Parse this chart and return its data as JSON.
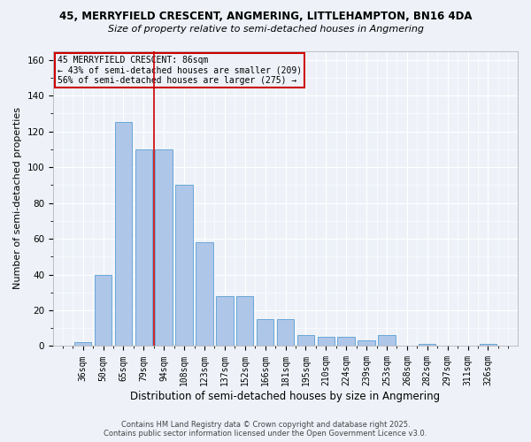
{
  "title1": "45, MERRYFIELD CRESCENT, ANGMERING, LITTLEHAMPTON, BN16 4DA",
  "title2": "Size of property relative to semi-detached houses in Angmering",
  "xlabel": "Distribution of semi-detached houses by size in Angmering",
  "ylabel": "Number of semi-detached properties",
  "categories": [
    "36sqm",
    "50sqm",
    "65sqm",
    "79sqm",
    "94sqm",
    "108sqm",
    "123sqm",
    "137sqm",
    "152sqm",
    "166sqm",
    "181sqm",
    "195sqm",
    "210sqm",
    "224sqm",
    "239sqm",
    "253sqm",
    "268sqm",
    "282sqm",
    "297sqm",
    "311sqm",
    "326sqm"
  ],
  "values": [
    2,
    40,
    125,
    110,
    110,
    90,
    58,
    28,
    28,
    15,
    15,
    6,
    5,
    5,
    3,
    6,
    0,
    1,
    0,
    0,
    1
  ],
  "bar_color": "#aec6e8",
  "bar_edge_color": "#5a9fd4",
  "vline_index": 3.5,
  "vline_color": "#cc0000",
  "annotation_title": "45 MERRYFIELD CRESCENT: 86sqm",
  "annotation_line1": "← 43% of semi-detached houses are smaller (209)",
  "annotation_line2": "56% of semi-detached houses are larger (275) →",
  "annotation_box_color": "#cc0000",
  "ylim": [
    0,
    165
  ],
  "yticks": [
    0,
    20,
    40,
    60,
    80,
    100,
    120,
    140,
    160
  ],
  "footer1": "Contains HM Land Registry data © Crown copyright and database right 2025.",
  "footer2": "Contains public sector information licensed under the Open Government Licence v3.0.",
  "bg_color": "#eef2f8"
}
